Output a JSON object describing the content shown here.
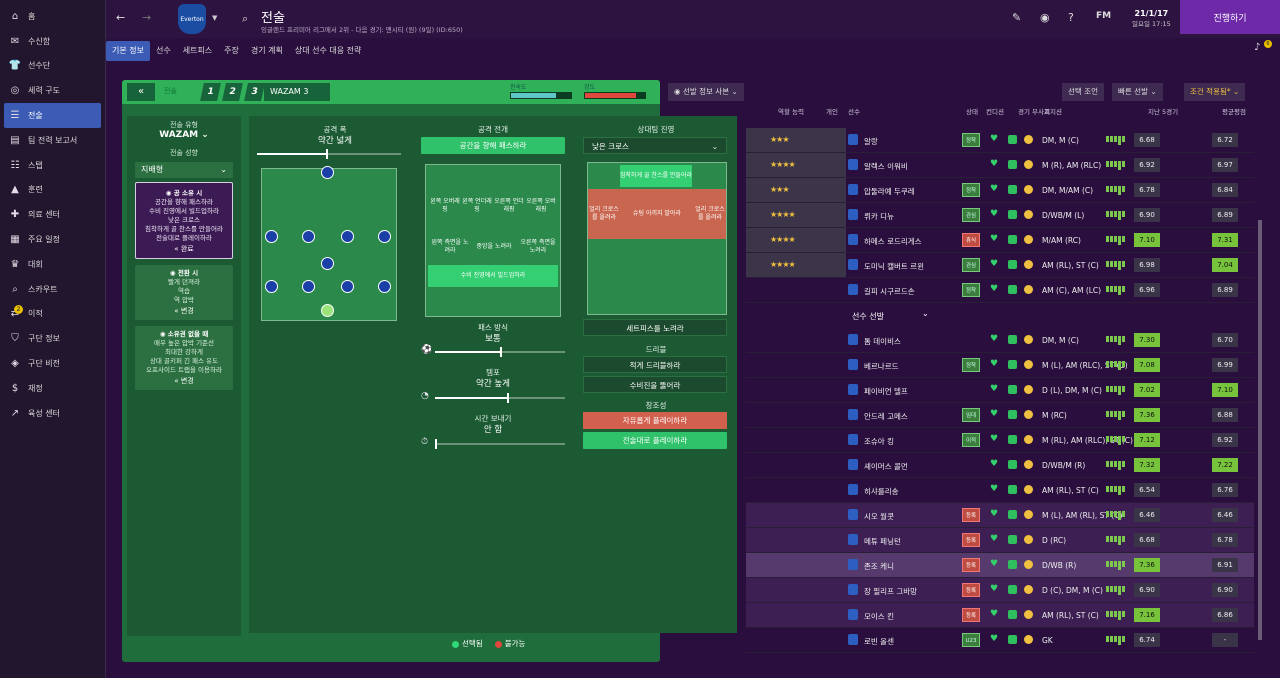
{
  "sidebar": {
    "items": [
      {
        "label": "홈",
        "icon": "home-icon",
        "glyph": "⌂"
      },
      {
        "label": "수신함",
        "icon": "inbox-icon",
        "glyph": "✉"
      },
      {
        "label": "선수단",
        "icon": "squad-icon",
        "glyph": "👕"
      },
      {
        "label": "세력 구도",
        "icon": "dynamics-icon",
        "glyph": "◎"
      },
      {
        "label": "전술",
        "icon": "tactics-icon",
        "glyph": "☰",
        "active": true
      },
      {
        "label": "팀 전력 보고서",
        "icon": "report-icon",
        "glyph": "▤"
      },
      {
        "label": "스탭",
        "icon": "staff-icon",
        "glyph": "☷"
      },
      {
        "label": "훈련",
        "icon": "training-icon",
        "glyph": "▲"
      },
      {
        "label": "의료 센터",
        "icon": "medical-icon",
        "glyph": "✚"
      },
      {
        "label": "주요 일정",
        "icon": "schedule-icon",
        "glyph": "▦"
      },
      {
        "label": "대회",
        "icon": "trophy-icon",
        "glyph": "♛"
      },
      {
        "label": "스카우트",
        "icon": "scout-icon",
        "glyph": "⌕"
      },
      {
        "label": "이적",
        "icon": "transfer-icon",
        "glyph": "⇄",
        "badge": "2"
      },
      {
        "label": "구단 정보",
        "icon": "club-info-icon",
        "glyph": "⛉"
      },
      {
        "label": "구단 비전",
        "icon": "vision-icon",
        "glyph": "◈"
      },
      {
        "label": "재정",
        "icon": "finance-icon",
        "glyph": "$"
      },
      {
        "label": "육성 센터",
        "icon": "development-icon",
        "glyph": "↗"
      }
    ]
  },
  "header": {
    "title": "전술",
    "subtitle": "잉글랜드 프리미어 리그에서 2위 - 다음 경기: 맨시티 (원) (9일) (ID:650)",
    "badge_text": "Everton",
    "date": "21/1/17",
    "day": "일요일 17:15",
    "continue_label": "진행하기",
    "fm": "FM",
    "notif": "6"
  },
  "tabs": [
    "기본 정보",
    "선수",
    "세트피스",
    "주장",
    "경기 계획",
    "상대 선수 대응 전략"
  ],
  "panel": {
    "label": "전술",
    "slots": [
      "1",
      "2",
      "3"
    ],
    "tactic": "WAZAM 3",
    "familiarity_label": "친숙도",
    "familiarity": 0.75,
    "intensity_label": "강도",
    "intensity": 0.85
  },
  "left": {
    "style_label": "전술 유형",
    "style": "WAZAM",
    "mentality_label": "전술 성향",
    "mentality": "지배형",
    "possession": {
      "title": "공 소유 시",
      "lines": [
        "공간을 향해 패스하라",
        "수비 진영에서 빌드업하라",
        "낮은 크로스",
        "침착하게 골 찬스를 만들어라",
        "전술대로 플레이하라"
      ],
      "action": "완료"
    },
    "transition": {
      "title": "전환 시",
      "lines": [
        "빨게 던져라",
        "역습",
        "역 압박"
      ],
      "action": "변경"
    },
    "defense": {
      "title": "소유권 없을 때",
      "lines": [
        "매우 높은 압박 기준선",
        "최대한 강하게",
        "상대 골키퍼 긴 패스 유도",
        "오프사이드 트랩을 이용하라"
      ],
      "action": "변경"
    }
  },
  "width": {
    "title": "공격 폭",
    "value": "약간 넓게",
    "level": 0.48
  },
  "attack": {
    "title": "공격 전개",
    "mode": "공간을 향해 패스하라",
    "zones": [
      "왼쪽 오버래핑",
      "왼쪽 언더래핑",
      "오른쪽 언더래핑",
      "오른쪽 오버래핑",
      "왼쪽 측면을 노려라",
      "중앙을 노려라",
      "오른쪽 측면을 노려라",
      "수비 진영에서 빌드업하라"
    ],
    "passing_title": "패스 방식",
    "passing": "보통",
    "passing_level": 0.5,
    "tempo_title": "템포",
    "tempo": "약간 높게",
    "tempo_level": 0.55,
    "time_title": "시간 보내기",
    "time": "안 함",
    "time_level": 0.0
  },
  "opponent": {
    "title": "상대팀 진영",
    "cross": "낮은 크로스",
    "zones": [
      "침착하게 골 찬스를 만들어라",
      "얼리 크로스를 올려라",
      "슈팅 아끼지 말아라",
      "얼리 크로스를 올려라"
    ],
    "setpiece": "세트피스를 노려라",
    "dribble_title": "드리블",
    "dribble": [
      "적게 드리블하라",
      "수비진을 뚫어라"
    ],
    "creative_title": "창조성",
    "creative": [
      "자유롭게 플레이하라",
      "전술대로 플레이하라"
    ]
  },
  "legend": {
    "selected": "선택됨",
    "unavailable": "불가능"
  },
  "right": {
    "view": "선발 정보 사본",
    "buttons": [
      "선택 조언",
      "빠른 선발",
      "조건 적용됨*"
    ],
    "headers": [
      "역할 능력",
      "개인",
      "선수",
      "상태",
      "컨디션",
      "경기 부사기",
      "포지션",
      "지난 5경기",
      "평균평점"
    ],
    "sub_label": "선수 선발",
    "players": [
      {
        "name": "알랑",
        "stars": "★★★",
        "pos": "DM, M (C)",
        "role": "정착",
        "r1": "6.68",
        "r2": "6.72"
      },
      {
        "name": "알렉스 이워비",
        "stars": "★★★★",
        "pos": "M (R), AM (RLC)",
        "role": "",
        "r1": "6.92",
        "r2": "6.97"
      },
      {
        "name": "압둘라예 두쿠레",
        "stars": "★★★",
        "pos": "DM, M/AM (C)",
        "role": "정착",
        "r1": "6.78",
        "r2": "6.84"
      },
      {
        "name": "뤼카 디뉴",
        "stars": "★★★★",
        "pos": "D/WB/M (L)",
        "role": "관심",
        "r1": "6.90",
        "r2": "6.89"
      },
      {
        "name": "하메스 로드리게스",
        "stars": "★★★★",
        "pos": "M/AM (RC)",
        "role": "휴식",
        "r1": "7.10",
        "r2": "7.31"
      },
      {
        "name": "도미닉 캘버트 르윈",
        "stars": "★★★★",
        "pos": "AM (RL), ST (C)",
        "role": "관심",
        "r1": "6.98",
        "r2": "7.04"
      },
      {
        "name": "길피 시구르드손",
        "stars": "",
        "pos": "AM (C), AM (LC)",
        "role": "정착",
        "r1": "6.96",
        "r2": "6.89"
      },
      {
        "name": "톰 데이비스",
        "stars": "",
        "pos": "DM, M (C)",
        "role": "",
        "r1": "7.30",
        "r2": "6.70"
      },
      {
        "name": "베르나르드",
        "stars": "",
        "pos": "M (L), AM (RLC), ST (C)",
        "role": "정착",
        "r1": "7.08",
        "r2": "6.99"
      },
      {
        "name": "페이비언 델프",
        "stars": "",
        "pos": "D (L), DM, M (C)",
        "role": "",
        "r1": "7.02",
        "r2": "7.10"
      },
      {
        "name": "안드레 고메스",
        "stars": "",
        "pos": "M (RC)",
        "role": "임대",
        "r1": "7.36",
        "r2": "6.88"
      },
      {
        "name": "조슈아 킹",
        "stars": "",
        "pos": "M (RL), AM (RLC), ST (C)",
        "role": "이적",
        "r1": "7.12",
        "r2": "6.92"
      },
      {
        "name": "셰이머스 콜먼",
        "stars": "",
        "pos": "D/WB/M (R)",
        "role": "",
        "r1": "7.32",
        "r2": "7.22"
      },
      {
        "name": "히샤를리송",
        "stars": "",
        "pos": "AM (RL), ST (C)",
        "role": "",
        "r1": "6.54",
        "r2": "6.76"
      },
      {
        "name": "시오 월콧",
        "stars": "",
        "pos": "M (L), AM (RL), ST (C)",
        "role": "등록",
        "r1": "6.46",
        "r2": "6.46"
      },
      {
        "name": "메튜 페닝턴",
        "stars": "",
        "pos": "D (RC)",
        "role": "등록",
        "r1": "6.68",
        "r2": "6.78"
      },
      {
        "name": "존조 케니",
        "stars": "",
        "pos": "D/WB (R)",
        "role": "등록",
        "r1": "7.36",
        "r2": "6.91"
      },
      {
        "name": "장 필리프 그바망",
        "stars": "",
        "pos": "D (C), DM, M (C)",
        "role": "등록",
        "r1": "6.90",
        "r2": "6.90"
      },
      {
        "name": "모이스 킨",
        "stars": "",
        "pos": "AM (RL), ST (C)",
        "role": "등록",
        "r1": "7.16",
        "r2": "6.86"
      },
      {
        "name": "로빈 올센",
        "stars": "",
        "pos": "GK",
        "role": "U23",
        "r1": "6.74",
        "r2": "-"
      }
    ]
  }
}
